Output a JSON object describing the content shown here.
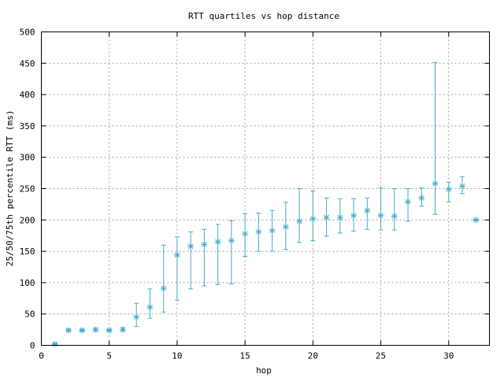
{
  "chart_data": {
    "type": "scatter",
    "title": "RTT quartiles vs hop distance",
    "xlabel": "hop",
    "ylabel": "25/50/75th percentile RTT (ms)",
    "xlim": [
      0,
      33
    ],
    "ylim": [
      0,
      500
    ],
    "xticks": [
      0,
      5,
      10,
      15,
      20,
      25,
      30
    ],
    "yticks": [
      0,
      50,
      100,
      150,
      200,
      250,
      300,
      350,
      400,
      450,
      500
    ],
    "grid": true,
    "legend": "none",
    "series": [
      {
        "color": "#44aacc",
        "marker": "asterisk",
        "points": [
          {
            "x": 1,
            "p25": 1,
            "median": 2,
            "p75": 3
          },
          {
            "x": 2,
            "p25": 23,
            "median": 24,
            "p75": 26
          },
          {
            "x": 3,
            "p25": 23,
            "median": 24,
            "p75": 25
          },
          {
            "x": 4,
            "p25": 23,
            "median": 25,
            "p75": 27
          },
          {
            "x": 5,
            "p25": 23,
            "median": 24,
            "p75": 25
          },
          {
            "x": 6,
            "p25": 23,
            "median": 25,
            "p75": 28
          },
          {
            "x": 7,
            "p25": 30,
            "median": 45,
            "p75": 67
          },
          {
            "x": 8,
            "p25": 43,
            "median": 61,
            "p75": 90
          },
          {
            "x": 9,
            "p25": 53,
            "median": 91,
            "p75": 160
          },
          {
            "x": 10,
            "p25": 72,
            "median": 144,
            "p75": 173
          },
          {
            "x": 11,
            "p25": 90,
            "median": 158,
            "p75": 181
          },
          {
            "x": 12,
            "p25": 95,
            "median": 161,
            "p75": 185
          },
          {
            "x": 13,
            "p25": 97,
            "median": 165,
            "p75": 193
          },
          {
            "x": 14,
            "p25": 98,
            "median": 167,
            "p75": 199
          },
          {
            "x": 15,
            "p25": 142,
            "median": 178,
            "p75": 210
          },
          {
            "x": 16,
            "p25": 150,
            "median": 181,
            "p75": 211
          },
          {
            "x": 17,
            "p25": 150,
            "median": 183,
            "p75": 215
          },
          {
            "x": 18,
            "p25": 153,
            "median": 189,
            "p75": 228
          },
          {
            "x": 19,
            "p25": 164,
            "median": 198,
            "p75": 250
          },
          {
            "x": 20,
            "p25": 167,
            "median": 202,
            "p75": 246
          },
          {
            "x": 21,
            "p25": 174,
            "median": 204,
            "p75": 235
          },
          {
            "x": 22,
            "p25": 179,
            "median": 204,
            "p75": 234
          },
          {
            "x": 23,
            "p25": 182,
            "median": 207,
            "p75": 234
          },
          {
            "x": 24,
            "p25": 185,
            "median": 215,
            "p75": 235
          },
          {
            "x": 25,
            "p25": 184,
            "median": 207,
            "p75": 251
          },
          {
            "x": 26,
            "p25": 184,
            "median": 206,
            "p75": 250
          },
          {
            "x": 27,
            "p25": 198,
            "median": 229,
            "p75": 250
          },
          {
            "x": 28,
            "p25": 222,
            "median": 235,
            "p75": 251
          },
          {
            "x": 29,
            "p25": 209,
            "median": 258,
            "p75": 451
          },
          {
            "x": 30,
            "p25": 229,
            "median": 249,
            "p75": 260
          },
          {
            "x": 31,
            "p25": 242,
            "median": 254,
            "p75": 269
          },
          {
            "x": 32,
            "p25": 199,
            "median": 200,
            "p75": 201
          }
        ]
      }
    ]
  }
}
